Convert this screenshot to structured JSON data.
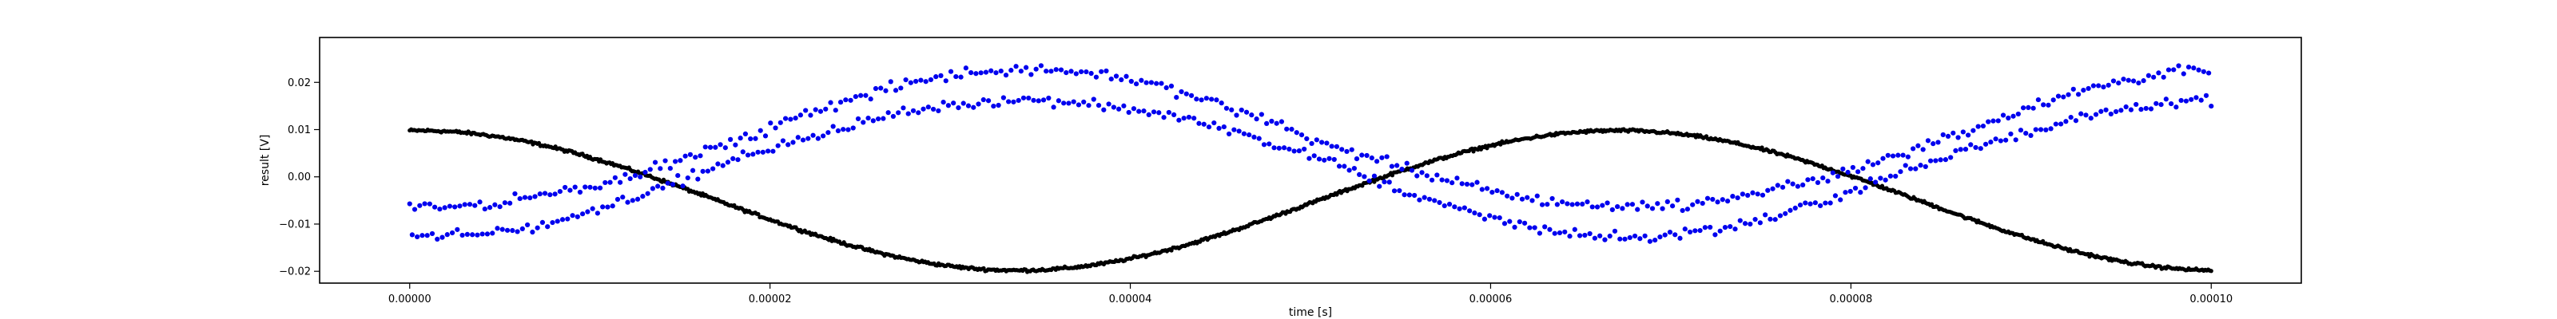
{
  "chart_data": {
    "type": "scatter",
    "title": "",
    "xlabel": "time [s]",
    "ylabel": "result [V]",
    "xlim": [
      -5e-06,
      0.000105
    ],
    "ylim": [
      -0.0225,
      0.0295
    ],
    "x_ticks": [
      0,
      2e-05,
      4e-05,
      6e-05,
      8e-05,
      0.0001
    ],
    "x_tick_labels": [
      "0.00000",
      "0.00002",
      "0.00004",
      "0.00006",
      "0.00008",
      "0.00010"
    ],
    "y_ticks": [
      -0.02,
      -0.01,
      0,
      0.01,
      0.02
    ],
    "y_tick_labels": [
      "−0.02",
      "−0.01",
      "0.00",
      "0.01",
      "0.02"
    ],
    "grid": false,
    "legend": "none",
    "series": [
      {
        "kind": "dense-line",
        "color": "#000000",
        "x_range": [
          0,
          0.0001
        ],
        "shape": "sine",
        "offset": -0.005,
        "amplitude": 0.0148,
        "period": 6.67e-05,
        "phase_peak_at": 4e-07,
        "noise": 0.0003,
        "points": 1200
      },
      {
        "kind": "points",
        "color": "#0000ee",
        "x_range": [
          0,
          0.0001
        ],
        "shape": "sine-pair",
        "offset": 0.005,
        "amplitude": 0.0145,
        "period": 6.67e-05,
        "trough_at": 1e-06,
        "split": 0.0065,
        "noise": 0.0011,
        "points": 720
      }
    ]
  }
}
